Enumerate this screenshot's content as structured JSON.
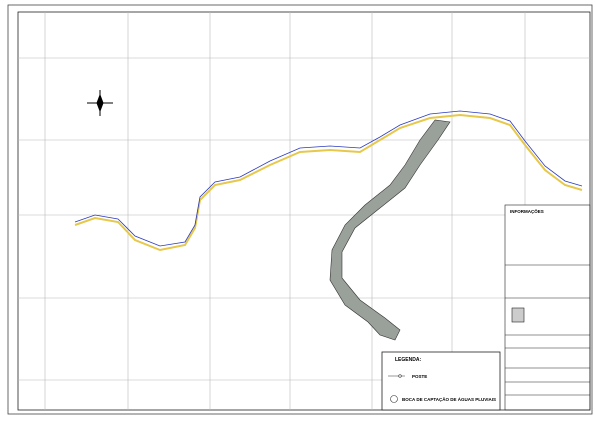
{
  "legend": {
    "title": "LEGENDA:",
    "items": [
      "POSTE",
      "BOCA DE CAPTAÇÃO DE ÁGUAS PLUVIAIS"
    ]
  },
  "info": {
    "title": "INFORMAÇÕES"
  }
}
